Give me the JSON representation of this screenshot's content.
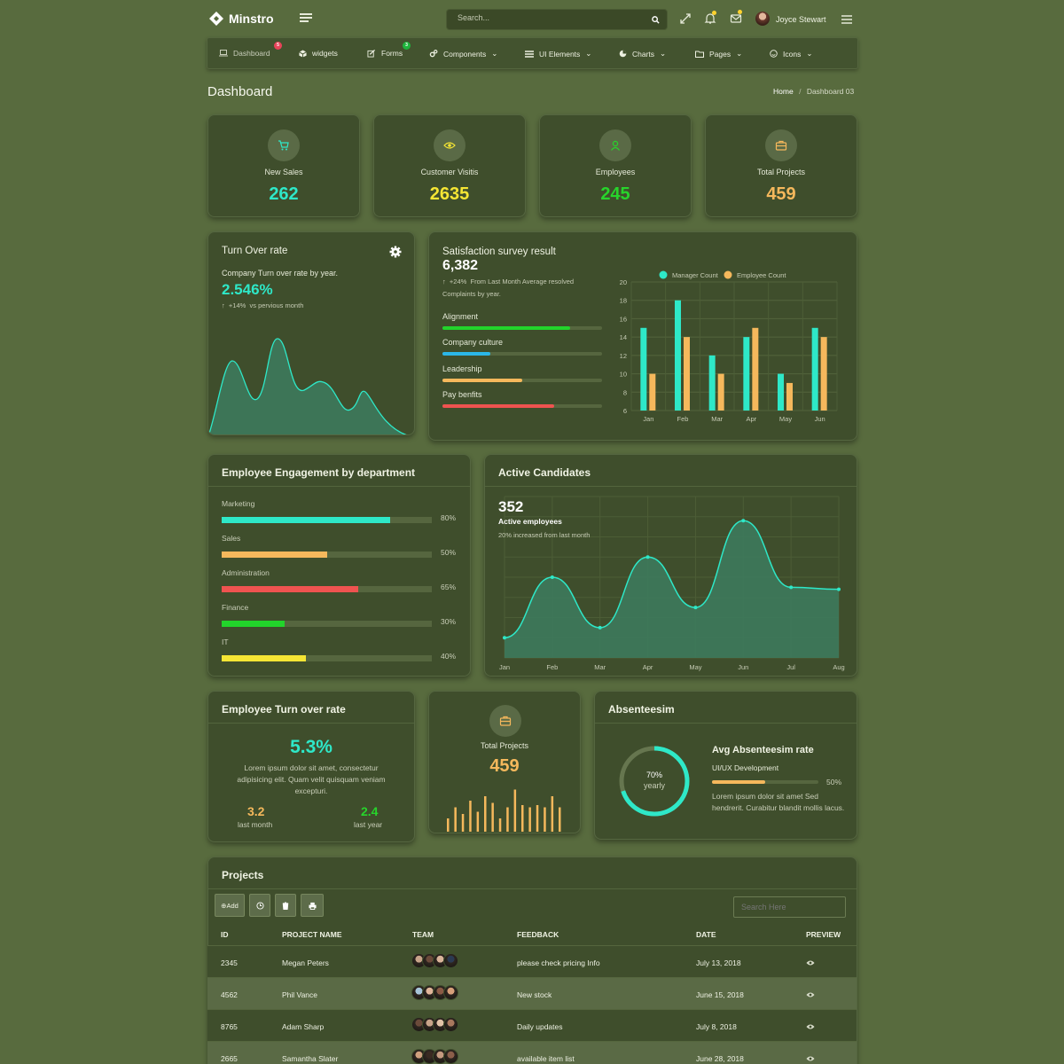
{
  "brand": {
    "name": "Minstro"
  },
  "topbar": {
    "search_placeholder": "Search...",
    "user_name": "Joyce Stewart"
  },
  "nav": [
    {
      "label": "Dashboard",
      "icon": "laptop-icon",
      "badge": "5",
      "badge_color": "#e9445a"
    },
    {
      "label": "widgets",
      "icon": "cube-icon"
    },
    {
      "label": "Forms",
      "icon": "edit-icon",
      "badge": "3",
      "badge_color": "#1fb53d"
    },
    {
      "label": "Components",
      "icon": "cogs-icon",
      "dropdown": true
    },
    {
      "label": "UI Elements",
      "icon": "list-icon",
      "dropdown": true
    },
    {
      "label": "Charts",
      "icon": "pie-chart-icon",
      "dropdown": true
    },
    {
      "label": "Pages",
      "icon": "folder-icon",
      "dropdown": true
    },
    {
      "label": "Icons",
      "icon": "smile-icon",
      "dropdown": true
    }
  ],
  "page": {
    "title": "Dashboard",
    "breadcrumb_home": "Home",
    "breadcrumb_sep": "/",
    "breadcrumb_current": "Dashboard 03"
  },
  "stats": [
    {
      "label": "New Sales",
      "value": "262",
      "color": "#2ee8c8",
      "icon": "cart-icon"
    },
    {
      "label": "Customer Visitis",
      "value": "2635",
      "color": "#f5e534",
      "icon": "eye-icon"
    },
    {
      "label": "Employees",
      "value": "245",
      "color": "#27d42b",
      "icon": "user-icon"
    },
    {
      "label": "Total Projects",
      "value": "459",
      "color": "#f5b85c",
      "icon": "briefcase-icon"
    }
  ],
  "turnover": {
    "title": "Turn Over rate",
    "subtitle": "Company Turn over rate by year.",
    "value": "2.546%",
    "change": "+14%",
    "change_note": "vs pervious month"
  },
  "survey": {
    "title": "Satisfaction survey result",
    "value": "6,382",
    "change": "+24%",
    "note1": "From Last Month Average resolved",
    "note2": "Complaints by year.",
    "items": [
      {
        "label": "Alignment",
        "pct": 80,
        "color": "#22d42b"
      },
      {
        "label": "Company culture",
        "pct": 30,
        "color": "#2bb7e8"
      },
      {
        "label": "Leadership",
        "pct": 50,
        "color": "#f5b85c"
      },
      {
        "label": "Pay benfits",
        "pct": 70,
        "color": "#ef5350"
      }
    ]
  },
  "chart_data": [
    {
      "type": "bar",
      "categories": [
        "Jan",
        "Feb",
        "Mar",
        "Apr",
        "May",
        "Jun"
      ],
      "series": [
        {
          "name": "Manager Count",
          "values": [
            15,
            18,
            12,
            14,
            10,
            15
          ],
          "color": "#2ee8c8"
        },
        {
          "name": "Employee Count",
          "values": [
            10,
            14,
            10,
            15,
            9,
            14
          ],
          "color": "#f5b85c"
        }
      ],
      "ylim": [
        6,
        20
      ],
      "yticks": [
        "20",
        "18",
        "16",
        "14",
        "12",
        "10",
        "8",
        "6"
      ],
      "legend": "top"
    },
    {
      "type": "area",
      "categories": [
        "Jan",
        "Feb",
        "Mar",
        "Apr",
        "May",
        "Jun",
        "Jul",
        "Aug"
      ],
      "values": [
        10,
        40,
        15,
        50,
        25,
        68,
        35,
        34
      ],
      "title": "352",
      "subtitle": "Active employees",
      "note": "20% increased from last month"
    }
  ],
  "engagement": {
    "title": "Employee Engagement by department",
    "items": [
      {
        "label": "Marketing",
        "pct": 80,
        "pct_label": "80%",
        "color": "#2ee8c8"
      },
      {
        "label": "Sales",
        "pct": 50,
        "pct_label": "50%",
        "color": "#f5b85c"
      },
      {
        "label": "Administration",
        "pct": 65,
        "pct_label": "65%",
        "color": "#ef5350"
      },
      {
        "label": "Finance",
        "pct": 30,
        "pct_label": "30%",
        "color": "#22d42b"
      },
      {
        "label": "IT",
        "pct": 40,
        "pct_label": "40%",
        "color": "#f5e534"
      }
    ]
  },
  "candidates": {
    "title": "Active Candidates"
  },
  "emp_turnover": {
    "title": "Employee Turn over rate",
    "value": "5.3%",
    "desc": "Lorem ipsum dolor sit amet, consectetur adipisicing elit. Quam velit quisquam veniam excepturi.",
    "last_month": "3.2",
    "last_month_label": "last month",
    "last_year": "2.4",
    "last_year_label": "last year"
  },
  "projects_card": {
    "label": "Total Projects",
    "value": "459",
    "bars": [
      30,
      55,
      40,
      70,
      45,
      80,
      65,
      30,
      55,
      95,
      60,
      55,
      60,
      55,
      80,
      55
    ]
  },
  "absenteeism": {
    "title": "Absenteesim",
    "ring_value": "70%",
    "ring_label": "yearly",
    "ring_pct": 70,
    "heading": "Avg Absenteesim rate",
    "sub": "UI/UX Development",
    "pct": 50,
    "pct_label": "50%",
    "desc": "Lorem ipsum dolor sit amet Sed hendrerit. Curabitur blandit mollis lacus."
  },
  "projects_table": {
    "title": "Projects",
    "add_label": "⊕Add",
    "search_placeholder": "Search Here",
    "columns": [
      "ID",
      "PROJECT NAME",
      "TEAM",
      "FEEDBACK",
      "DATE",
      "PREVIEW"
    ],
    "rows": [
      {
        "id": "2345",
        "name": "Megan Peters",
        "feedback": "please check pricing Info",
        "date": "July 13, 2018"
      },
      {
        "id": "4562",
        "name": "Phil Vance",
        "feedback": "New stock",
        "date": "June 15, 2018"
      },
      {
        "id": "8765",
        "name": "Adam Sharp",
        "feedback": "Daily updates",
        "date": "July 8, 2018"
      },
      {
        "id": "2665",
        "name": "Samantha Slater",
        "feedback": "available item list",
        "date": "June 28, 2018"
      }
    ]
  }
}
